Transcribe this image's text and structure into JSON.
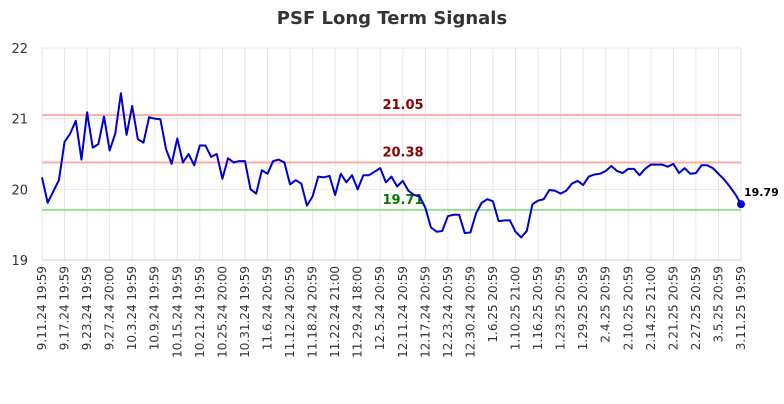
{
  "chart_data": {
    "type": "line",
    "title": "PSF Long Term Signals",
    "xlabel": "",
    "ylabel": "",
    "ylim": [
      19,
      22
    ],
    "yticks": [
      "19",
      "20",
      "21",
      "22"
    ],
    "x_tick_labels": [
      "9.11.24 19:59",
      "9.17.24 19:59",
      "9.23.24 19:59",
      "9.27.24 20:00",
      "10.3.24 19:59",
      "10.9.24 19:59",
      "10.15.24 19:59",
      "10.21.24 19:59",
      "10.25.24 20:00",
      "10.31.24 19:59",
      "11.6.24 20:59",
      "11.12.24 20:59",
      "11.18.24 20:59",
      "11.22.24 21:00",
      "11.29.24 18:00",
      "12.5.24 20:59",
      "12.11.24 20:59",
      "12.17.24 20:59",
      "12.23.24 20:59",
      "12.30.24 20:59",
      "1.6.25 20:59",
      "1.10.25 21:00",
      "1.16.25 20:59",
      "1.23.25 20:59",
      "1.29.25 20:59",
      "2.4.25 20:59",
      "2.10.25 20:59",
      "2.14.25 21:00",
      "2.21.25 20:59",
      "2.27.25 20:59",
      "3.5.25 20:59",
      "3.11.25 19:59"
    ],
    "series": [
      {
        "color": "#0000cc",
        "values": [
          20.17,
          19.81,
          19.97,
          20.13,
          20.67,
          20.79,
          20.97,
          20.42,
          21.09,
          20.59,
          20.64,
          21.03,
          20.55,
          20.79,
          21.36,
          20.77,
          21.18,
          20.71,
          20.66,
          21.02,
          21.0,
          20.99,
          20.57,
          20.36,
          20.72,
          20.38,
          20.5,
          20.34,
          20.62,
          20.62,
          20.46,
          20.5,
          20.15,
          20.44,
          20.38,
          20.4,
          20.4,
          20.0,
          19.94,
          20.27,
          20.22,
          20.4,
          20.42,
          20.38,
          20.07,
          20.13,
          20.08,
          19.77,
          19.9,
          20.18,
          20.17,
          20.19,
          19.92,
          20.22,
          20.1,
          20.2,
          20.0,
          20.2,
          20.2,
          20.25,
          20.3,
          20.1,
          20.18,
          20.04,
          20.12,
          19.98,
          19.92,
          19.9,
          19.74,
          19.46,
          19.4,
          19.41,
          19.62,
          19.64,
          19.64,
          19.38,
          19.39,
          19.66,
          19.81,
          19.86,
          19.83,
          19.55,
          19.56,
          19.56,
          19.4,
          19.32,
          19.41,
          19.79,
          19.84,
          19.86,
          19.99,
          19.98,
          19.94,
          19.98,
          20.08,
          20.12,
          20.06,
          20.18,
          20.21,
          20.22,
          20.26,
          20.33,
          20.26,
          20.23,
          20.29,
          20.29,
          20.2,
          20.29,
          20.35,
          20.35,
          20.35,
          20.32,
          20.36,
          20.23,
          20.3,
          20.22,
          20.23,
          20.34,
          20.34,
          20.3,
          20.22,
          20.14,
          20.04,
          19.93,
          19.79
        ]
      }
    ],
    "last_value_label": "19.79",
    "reference_lines": [
      {
        "value": 21.05,
        "label": "21.05",
        "line_color": "#ffaaaa",
        "label_color": "#8b0000"
      },
      {
        "value": 20.38,
        "label": "20.38",
        "line_color": "#ffaaaa",
        "label_color": "#8b0000"
      },
      {
        "value": 19.71,
        "label": "19.71",
        "line_color": "#99dd99",
        "label_color": "#007700"
      }
    ],
    "grid": true
  }
}
